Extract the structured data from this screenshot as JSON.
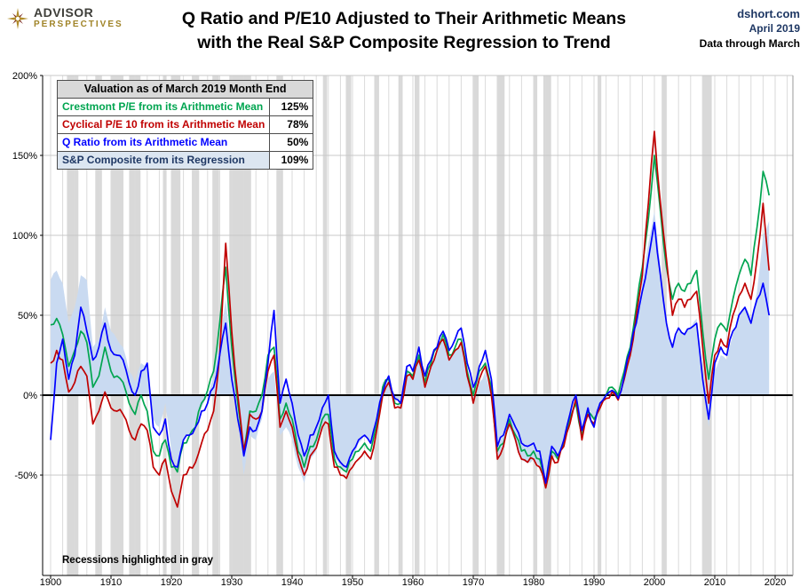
{
  "header": {
    "logo": {
      "line1": "ADVISOR",
      "line2": "PERSPECTIVES"
    },
    "title_line1": "Q Ratio and P/E10 Adjusted to Their Arithmetic Means",
    "title_line2": "with the Real S&P Composite Regression to Trend",
    "source": {
      "site": "dshort.com",
      "date": "April 2019",
      "note": "Data through March"
    }
  },
  "legend": {
    "title": "Valuation as of March 2019 Month End",
    "rows": [
      {
        "label": "Crestmont P/E from its Arithmetic Mean",
        "value": "125%",
        "color": "#00A550"
      },
      {
        "label": "Cyclical P/E 10 from its Arithmetic Mean",
        "value": "78%",
        "color": "#C00000"
      },
      {
        "label": "Q Ratio from its Arithmetic Mean",
        "value": "50%",
        "color": "#0000FF"
      },
      {
        "label": "S&P Composite from its Regression",
        "value": "109%",
        "color": "#1F3864",
        "highlight": true
      }
    ]
  },
  "annotation": "Recessions highlighted in gray",
  "chart_data": {
    "type": "line",
    "title": "Q Ratio and P/E10 Adjusted to Their Arithmetic Means with the Real S&P Composite Regression to Trend",
    "x_start": 1900,
    "x_step": 1,
    "x_ticks": [
      1900,
      1910,
      1920,
      1930,
      1940,
      1950,
      1960,
      1970,
      1980,
      1990,
      2000,
      2010,
      2020
    ],
    "y_ticks": [
      200,
      150,
      100,
      50,
      0,
      -50
    ],
    "y_unit": "%",
    "xlim": [
      1898.5,
      2023
    ],
    "ylim": [
      -113,
      200
    ],
    "grid": true,
    "recession_color": "#d9d9d9",
    "annotation": "Recessions highlighted in gray",
    "area_series": {
      "name": "S&P Composite from its Regression",
      "color": "#c9daf1",
      "values": [
        72,
        78,
        70,
        45,
        55,
        75,
        72,
        30,
        35,
        55,
        40,
        35,
        30,
        15,
        8,
        20,
        18,
        -15,
        -20,
        -5,
        -35,
        -45,
        -28,
        -25,
        -20,
        -8,
        0,
        12,
        35,
        60,
        20,
        -15,
        -50,
        -25,
        -28,
        -15,
        10,
        15,
        -25,
        -20,
        -28,
        -45,
        -55,
        -40,
        -35,
        -22,
        -15,
        -40,
        -45,
        -48,
        -38,
        -30,
        -25,
        -30,
        -12,
        8,
        12,
        -5,
        -2,
        18,
        12,
        25,
        5,
        18,
        28,
        35,
        22,
        28,
        33,
        12,
        -5,
        8,
        15,
        0,
        -40,
        -32,
        -20,
        -30,
        -40,
        -42,
        -40,
        -45,
        -55,
        -38,
        -40,
        -30,
        -15,
        0,
        -25,
        -8,
        -15,
        -5,
        0,
        3,
        -2,
        10,
        25,
        45,
        70,
        95,
        115,
        80,
        45,
        30,
        40,
        38,
        42,
        48,
        10,
        -20,
        15,
        25,
        22,
        38,
        50,
        55,
        48,
        65,
        100,
        109
      ]
    },
    "series": [
      {
        "name": "Crestmont P/E from its Arithmetic Mean",
        "color": "#00A550",
        "values": [
          44,
          48,
          38,
          18,
          28,
          40,
          33,
          5,
          12,
          30,
          15,
          12,
          8,
          -5,
          -12,
          0,
          -10,
          -35,
          -38,
          -28,
          -45,
          -48,
          -30,
          -25,
          -20,
          -5,
          3,
          15,
          45,
          80,
          30,
          -5,
          -35,
          -10,
          -10,
          0,
          25,
          30,
          -15,
          -5,
          -15,
          -35,
          -45,
          -32,
          -28,
          -15,
          -12,
          -40,
          -45,
          -48,
          -40,
          -35,
          -30,
          -35,
          -18,
          5,
          10,
          -5,
          -5,
          15,
          12,
          25,
          8,
          20,
          30,
          38,
          25,
          30,
          35,
          15,
          0,
          15,
          20,
          5,
          -35,
          -30,
          -15,
          -25,
          -35,
          -38,
          -35,
          -40,
          -55,
          -35,
          -40,
          -30,
          -15,
          -5,
          -25,
          -10,
          -15,
          -5,
          0,
          5,
          0,
          15,
          30,
          55,
          80,
          110,
          150,
          115,
          80,
          60,
          70,
          65,
          70,
          78,
          40,
          10,
          35,
          45,
          40,
          60,
          75,
          85,
          75,
          105,
          140,
          125
        ]
      },
      {
        "name": "Cyclical P/E 10 from its Arithmetic Mean",
        "color": "#C00000",
        "values": [
          20,
          28,
          22,
          2,
          8,
          18,
          12,
          -18,
          -10,
          2,
          -8,
          -10,
          -12,
          -22,
          -28,
          -18,
          -22,
          -45,
          -50,
          -40,
          -60,
          -70,
          -50,
          -45,
          -42,
          -30,
          -22,
          -10,
          25,
          95,
          40,
          0,
          -35,
          -12,
          -15,
          -10,
          15,
          25,
          -20,
          -10,
          -20,
          -38,
          -50,
          -38,
          -33,
          -20,
          -18,
          -45,
          -50,
          -52,
          -45,
          -40,
          -35,
          -40,
          -22,
          0,
          8,
          -8,
          -8,
          12,
          10,
          22,
          5,
          18,
          28,
          35,
          22,
          28,
          33,
          12,
          -5,
          10,
          18,
          0,
          -40,
          -32,
          -18,
          -28,
          -40,
          -42,
          -40,
          -45,
          -58,
          -38,
          -42,
          -32,
          -18,
          -2,
          -28,
          -12,
          -18,
          -8,
          -2,
          2,
          -3,
          10,
          25,
          50,
          75,
          120,
          165,
          120,
          85,
          50,
          60,
          55,
          60,
          65,
          30,
          -5,
          25,
          35,
          30,
          50,
          62,
          70,
          60,
          85,
          120,
          78
        ]
      },
      {
        "name": "Q Ratio from its Arithmetic Mean",
        "color": "#0000FF",
        "values": [
          -28,
          20,
          35,
          10,
          25,
          55,
          40,
          22,
          30,
          45,
          28,
          25,
          22,
          8,
          0,
          15,
          20,
          -20,
          -25,
          -15,
          -40,
          -45,
          -28,
          -25,
          -20,
          -10,
          -5,
          5,
          25,
          45,
          10,
          -15,
          -38,
          -20,
          -22,
          -10,
          20,
          53,
          -5,
          10,
          -5,
          -25,
          -38,
          -25,
          -20,
          -8,
          0,
          -35,
          -42,
          -45,
          -35,
          -28,
          -25,
          -30,
          -15,
          2,
          12,
          -2,
          -5,
          18,
          15,
          30,
          12,
          22,
          30,
          40,
          28,
          35,
          42,
          20,
          5,
          18,
          28,
          10,
          -32,
          -25,
          -12,
          -20,
          -30,
          -32,
          -30,
          -35,
          -55,
          -32,
          -38,
          -28,
          -12,
          0,
          -22,
          -8,
          -20,
          -5,
          0,
          3,
          -2,
          12,
          28,
          45,
          65,
          85,
          108,
          75,
          45,
          30,
          42,
          38,
          42,
          45,
          10,
          -15,
          20,
          30,
          25,
          40,
          50,
          55,
          45,
          60,
          70,
          50
        ]
      }
    ],
    "recessions": [
      [
        1902.7,
        1904.6
      ],
      [
        1907.4,
        1908.5
      ],
      [
        1910.0,
        1912.0
      ],
      [
        1913.0,
        1914.9
      ],
      [
        1918.6,
        1919.2
      ],
      [
        1920.0,
        1921.5
      ],
      [
        1923.4,
        1924.6
      ],
      [
        1926.8,
        1927.9
      ],
      [
        1929.6,
        1933.2
      ],
      [
        1937.4,
        1938.5
      ],
      [
        1945.1,
        1945.8
      ],
      [
        1948.9,
        1949.8
      ],
      [
        1953.6,
        1954.4
      ],
      [
        1957.6,
        1958.3
      ],
      [
        1960.3,
        1961.1
      ],
      [
        1969.9,
        1970.9
      ],
      [
        1973.9,
        1975.2
      ],
      [
        1980.0,
        1980.6
      ],
      [
        1981.6,
        1982.9
      ],
      [
        1990.6,
        1991.2
      ],
      [
        2001.2,
        2001.9
      ],
      [
        2007.9,
        2009.5
      ]
    ]
  }
}
